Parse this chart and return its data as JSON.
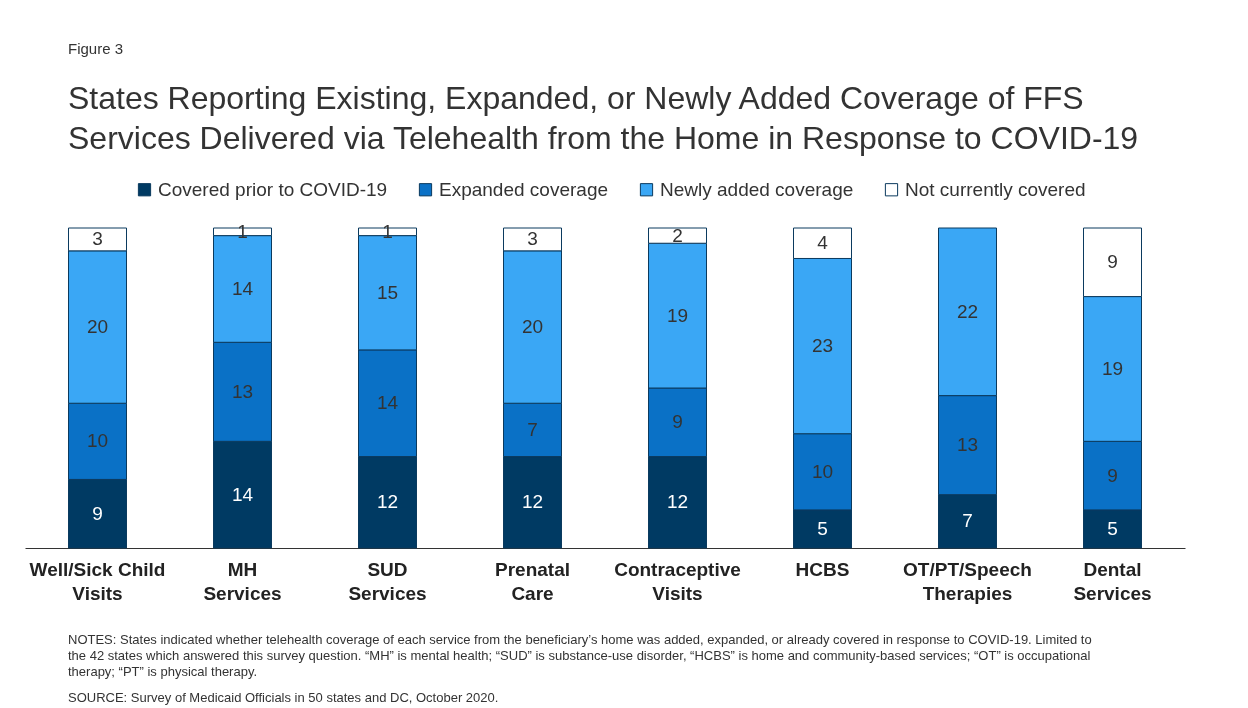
{
  "chart_data": {
    "type": "bar",
    "stacked": true,
    "data_labels": true,
    "legend": "top",
    "title": "States Reporting Existing, Expanded, or Newly Added Coverage of FFS Services Delivered via Telehealth from the Home in Response to COVID-19",
    "annotations": [
      "Figure 3",
      "NOTES: States indicated whether telehealth coverage of each service from the beneficiary’s home was added, expanded, or already covered in response to COVID-19. Limited to the 42 states which answered this survey question. “MH” is mental health; “SUD” is substance-use disorder, “HCBS” is home and community-based services; “OT” is occupational therapy; “PT” is physical therapy.",
      "SOURCE: Survey of Medicaid Officials in 50 states and DC, October 2020."
    ],
    "categories": [
      "Well/Sick Child Visits",
      "MH Services",
      "SUD Services",
      "Prenatal Care",
      "Contraceptive Visits",
      "HCBS",
      "OT/PT/Speech Therapies",
      "Dental Services"
    ],
    "series": [
      {
        "name": "Covered prior to COVID-19",
        "color": "#003a63",
        "values": [
          9,
          14,
          12,
          12,
          12,
          5,
          7,
          5
        ]
      },
      {
        "name": "Expanded coverage",
        "color": "#0a71c6",
        "values": [
          10,
          13,
          14,
          7,
          9,
          10,
          13,
          9
        ]
      },
      {
        "name": "Newly added coverage",
        "color": "#3aa7f5",
        "values": [
          20,
          14,
          15,
          20,
          19,
          23,
          22,
          19
        ]
      },
      {
        "name": "Not currently covered",
        "color": "#ffffff",
        "values": [
          3,
          1,
          1,
          3,
          2,
          4,
          null,
          9
        ]
      }
    ]
  }
}
